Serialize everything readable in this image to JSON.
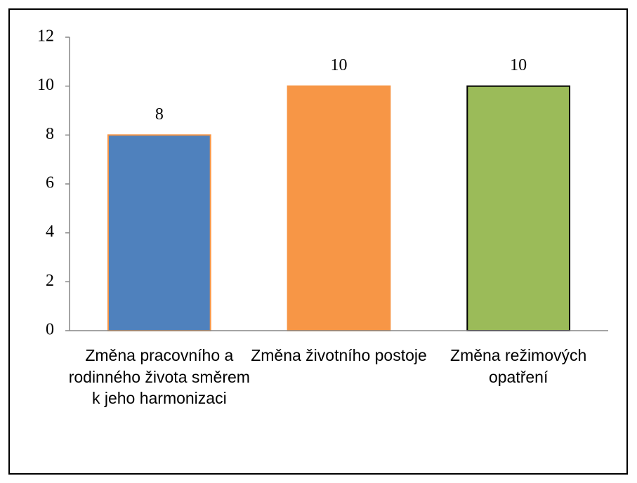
{
  "chart_data": {
    "type": "bar",
    "categories": [
      "Změna pracovního a rodinného života směrem k jeho harmonizaci",
      "Změna životního postoje",
      "Změna režimových opatření"
    ],
    "values": [
      8,
      10,
      10
    ],
    "colors": [
      "#4f81bd",
      "#f79646",
      "#9bbb59"
    ],
    "edgecolors": [
      "#f79646",
      "#f79646",
      "#000000"
    ],
    "ylim": [
      0,
      12
    ],
    "yticks": [
      0,
      2,
      4,
      6,
      8,
      10,
      12
    ],
    "grid": false
  }
}
